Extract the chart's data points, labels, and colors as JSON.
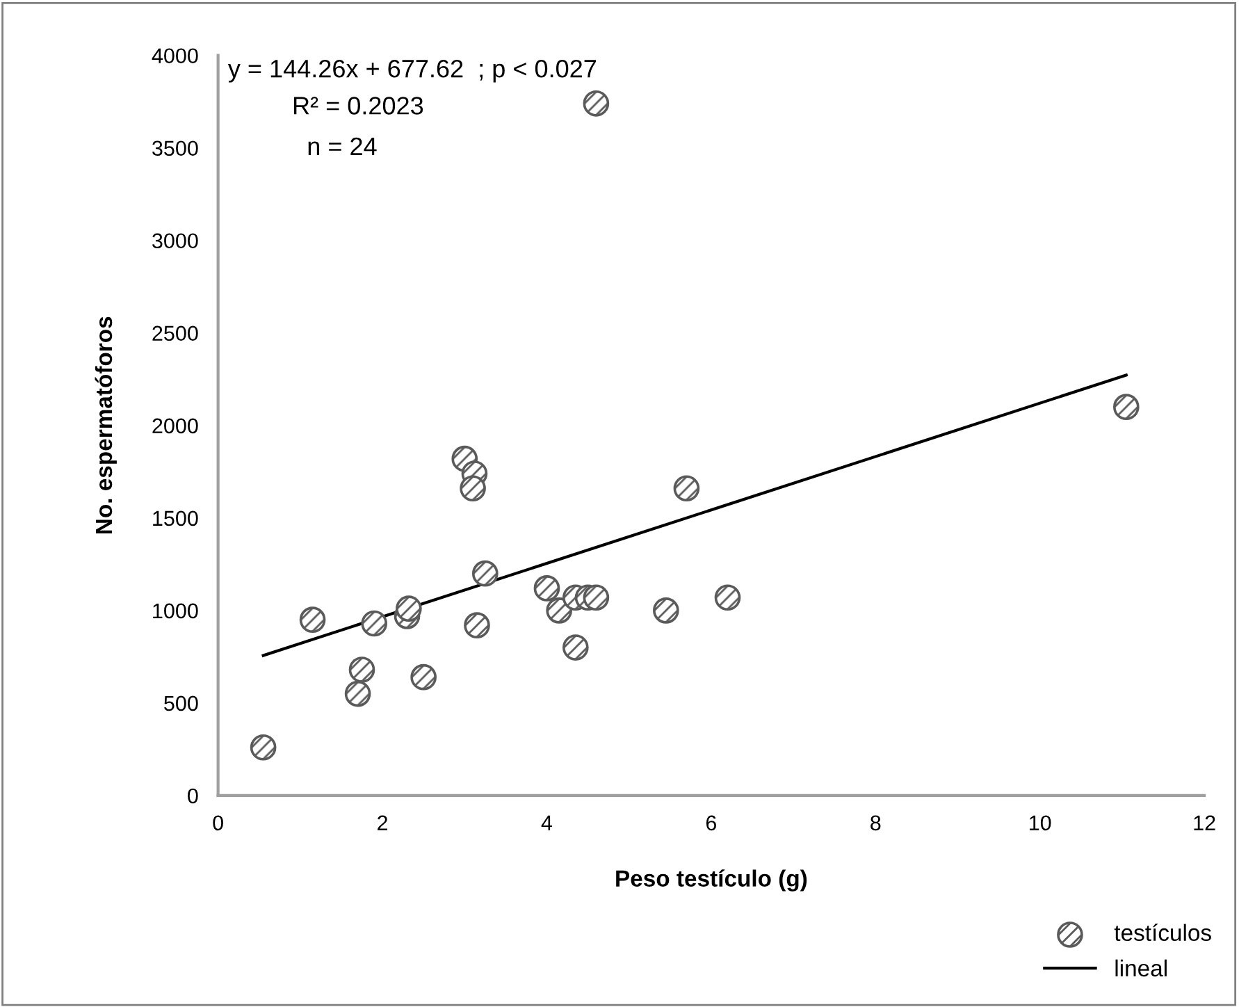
{
  "chart_data": {
    "type": "scatter",
    "xlabel": "Peso testículo (g)",
    "ylabel": "No. espermatóforos",
    "annotations": [
      "y = 144.26x + 677.62  ; p < 0.027",
      "R² = 0.2023",
      "n = 24"
    ],
    "xlim": [
      0,
      12
    ],
    "xticks": [
      0,
      2,
      4,
      6,
      8,
      10,
      12
    ],
    "ylim": [
      0,
      4000
    ],
    "yticks": [
      0,
      500,
      1000,
      1500,
      2000,
      2500,
      3000,
      3500,
      4000
    ],
    "grid": false,
    "legend": "bottom right",
    "series": [
      {
        "name": "testículos",
        "marker": "circle",
        "color": "#5a5a5a",
        "x": [
          0.55,
          1.15,
          1.7,
          1.75,
          1.9,
          2.3,
          2.32,
          2.5,
          3.0,
          3.12,
          3.1,
          3.15,
          3.25,
          4.0,
          4.15,
          4.35,
          4.35,
          4.5,
          4.6,
          4.6,
          5.45,
          5.7,
          6.2,
          11.05
        ],
        "values": [
          260,
          950,
          550,
          680,
          930,
          970,
          1010,
          640,
          1820,
          1740,
          1660,
          920,
          1200,
          1120,
          1000,
          1070,
          800,
          1070,
          1070,
          3740,
          1000,
          1660,
          1070,
          2100
        ]
      },
      {
        "name": "lineal",
        "type": "line",
        "marker": "none",
        "color": "#000000",
        "line_style": "solid",
        "x": [
          0.55,
          11.05
        ],
        "values": [
          757,
          2272
        ]
      }
    ]
  }
}
